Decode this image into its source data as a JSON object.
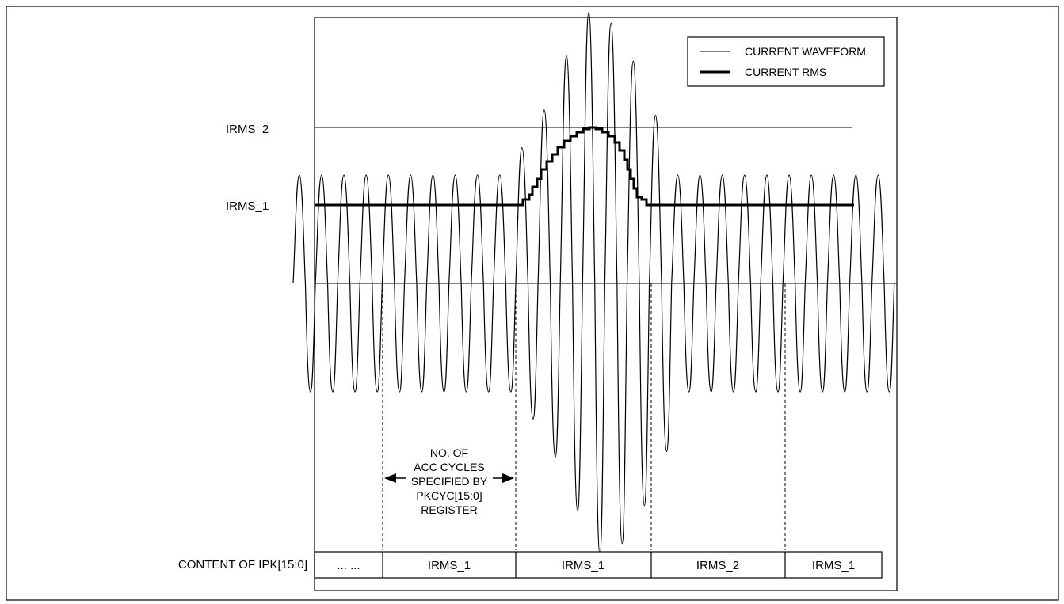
{
  "legend": {
    "waveform_label": "CURRENT WAVEFORM",
    "rms_label": "CURRENT RMS"
  },
  "levels": {
    "irms2_label": "IRMS_2",
    "irms1_label": "IRMS_1"
  },
  "annotation": {
    "lines": [
      "NO. OF",
      "ACC CYCLES",
      "SPECIFIED BY",
      "PKCYC[15:0]",
      "REGISTER"
    ]
  },
  "register": {
    "row_label": "CONTENT OF IPK[15:0]",
    "cells": [
      "... ...",
      "IRMS_1",
      "IRMS_1",
      "IRMS_2",
      "IRMS_1"
    ]
  },
  "waveform": {
    "normal_cycles_before": 10,
    "burst_peaks_relative": [
      1.25,
      1.6,
      2.1,
      2.5,
      2.4,
      2.05,
      1.55
    ],
    "normal_cycles_after": 10
  },
  "colors": {
    "line": "#000000",
    "background": "#ffffff"
  }
}
